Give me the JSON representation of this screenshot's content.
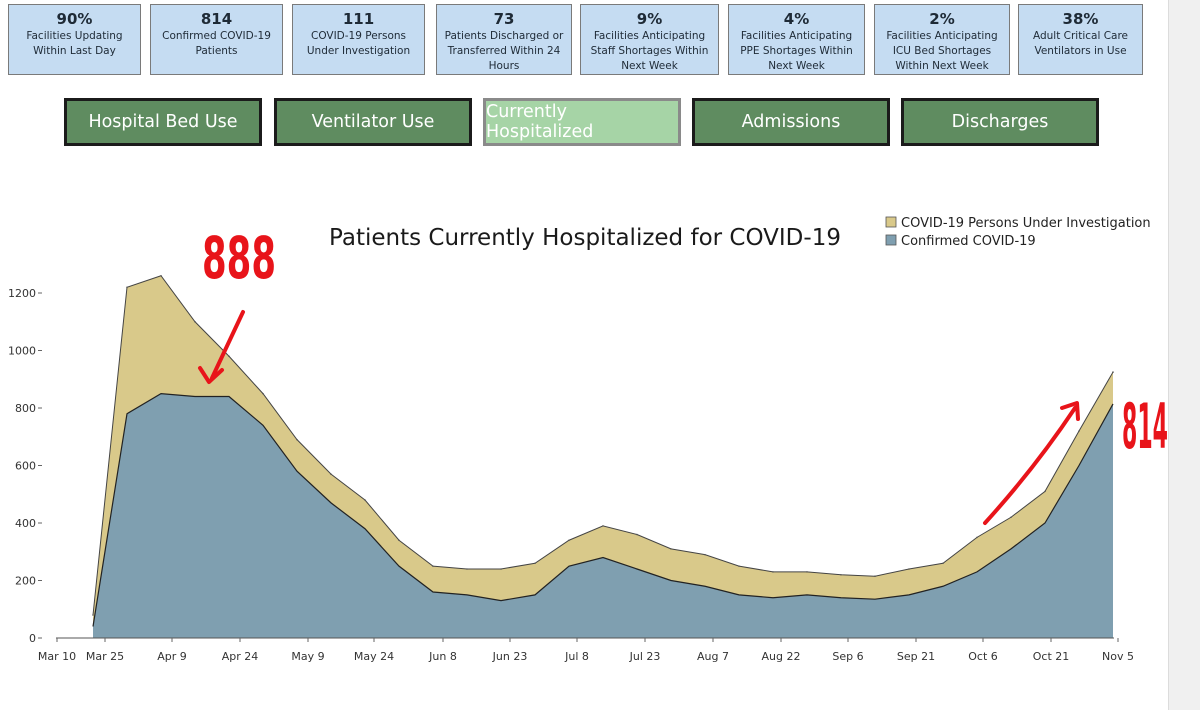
{
  "tiles": [
    {
      "value": "90%",
      "label": "Facilities Updating Within Last Day"
    },
    {
      "value": "814",
      "label": "Confirmed COVID-19 Patients"
    },
    {
      "value": "111",
      "label": "COVID-19 Persons Under Investigation"
    },
    {
      "value": "73",
      "label": "Patients Discharged or Transferred Within 24 Hours"
    },
    {
      "value": "9%",
      "label": "Facilities Anticipating Staff Shortages Within Next Week"
    },
    {
      "value": "4%",
      "label": "Facilities Anticipating PPE Shortages Within Next Week"
    },
    {
      "value": "2%",
      "label": "Facilities Anticipating ICU Bed Shortages Within Next Week"
    },
    {
      "value": "38%",
      "label": "Adult Critical Care Ventilators in Use"
    }
  ],
  "nav": [
    {
      "label": "Hospital Bed Use",
      "active": false
    },
    {
      "label": "Ventilator Use",
      "active": false
    },
    {
      "label": "Currently Hospitalized",
      "active": true
    },
    {
      "label": "Admissions",
      "active": false
    },
    {
      "label": "Discharges",
      "active": false
    }
  ],
  "annotations": {
    "peak": "888",
    "latest": "814"
  },
  "chart_data": {
    "type": "area",
    "title": "Patients Currently Hospitalized for COVID-19",
    "stacked": true,
    "legend_position": "top-right",
    "ylim": [
      0,
      1300
    ],
    "yticks": [
      0,
      200,
      400,
      600,
      800,
      1000,
      1200
    ],
    "xticks": [
      "Mar 10",
      "Mar 25",
      "Apr 9",
      "Apr 24",
      "May 9",
      "May 24",
      "Jun 8",
      "Jun 23",
      "Jul 8",
      "Jul 23",
      "Aug 7",
      "Aug 22",
      "Sep 6",
      "Sep 21",
      "Oct 6",
      "Oct 21",
      "Nov 5"
    ],
    "x": [
      "Mar 25",
      "Apr 1",
      "Apr 9",
      "Apr 16",
      "Apr 24",
      "May 1",
      "May 9",
      "May 16",
      "May 24",
      "Jun 1",
      "Jun 8",
      "Jun 16",
      "Jun 23",
      "Jul 1",
      "Jul 8",
      "Jul 16",
      "Jul 23",
      "Jul 31",
      "Aug 7",
      "Aug 15",
      "Aug 22",
      "Aug 30",
      "Sep 6",
      "Sep 14",
      "Sep 21",
      "Sep 29",
      "Oct 6",
      "Oct 14",
      "Oct 21",
      "Oct 29",
      "Nov 5"
    ],
    "series": [
      {
        "name": "Confirmed COVID-19",
        "color": "#7f9fb0",
        "values": [
          40,
          780,
          850,
          840,
          840,
          740,
          580,
          470,
          380,
          250,
          160,
          150,
          130,
          150,
          250,
          280,
          240,
          200,
          180,
          150,
          140,
          150,
          140,
          135,
          150,
          180,
          230,
          310,
          400,
          600,
          814
        ]
      },
      {
        "name": "COVID-19 Persons Under Investigation",
        "color": "#d9c98a",
        "values": [
          40,
          440,
          410,
          260,
          140,
          110,
          110,
          100,
          100,
          90,
          90,
          90,
          110,
          110,
          90,
          110,
          120,
          110,
          110,
          100,
          90,
          80,
          80,
          80,
          90,
          80,
          120,
          110,
          110,
          120,
          111
        ]
      }
    ]
  }
}
